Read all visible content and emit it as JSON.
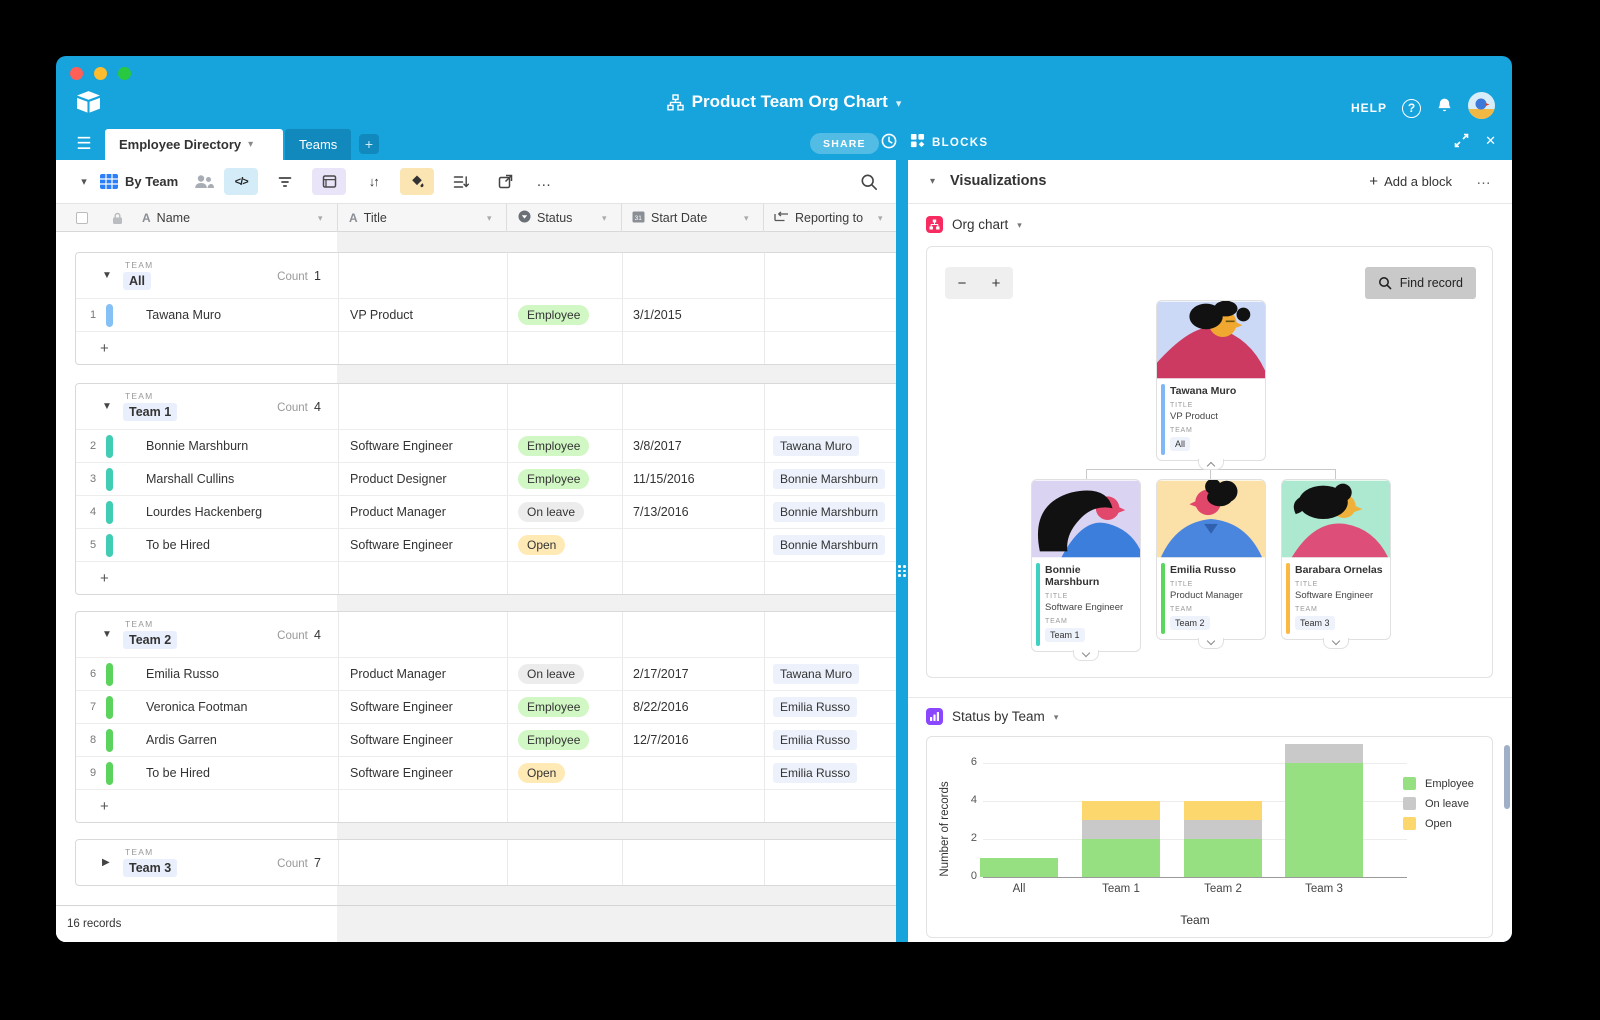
{
  "window": {
    "title": "Product Team Org Chart",
    "help_label": "HELP",
    "share_label": "SHARE",
    "blocks_label": "BLOCKS"
  },
  "tabs": [
    {
      "label": "Employee Directory",
      "active": true
    },
    {
      "label": "Teams",
      "active": false
    }
  ],
  "toolbar": {
    "view_name": "By Team"
  },
  "icons": {
    "caret_down": "▾",
    "tri_down": "▼",
    "tri_right": "▶",
    "plus": "+",
    "minus": "−",
    "ellipsis": "…",
    "close": "✕",
    "hamburger": "☰",
    "code": "</>",
    "sort": "↓↑",
    "help": "?"
  },
  "table": {
    "columns": [
      {
        "label": "Name",
        "icon": "text-field-icon"
      },
      {
        "label": "Title",
        "icon": "text-field-icon"
      },
      {
        "label": "Status",
        "icon": "select-field-icon"
      },
      {
        "label": "Start Date",
        "icon": "date-field-icon"
      },
      {
        "label": "Reporting to",
        "icon": "linked-field-icon"
      }
    ],
    "group_field_label": "TEAM",
    "count_label": "Count",
    "groups": [
      {
        "value": "All",
        "count": 1,
        "collapsed": false,
        "rows": [
          {
            "num": 1,
            "bar_color": "#85C1F5",
            "name": "Tawana Muro",
            "title": "VP Product",
            "status": "Employee",
            "start": "3/1/2015",
            "reports": ""
          }
        ]
      },
      {
        "value": "Team 1",
        "count": 4,
        "collapsed": false,
        "rows": [
          {
            "num": 2,
            "bar_color": "#41CDB4",
            "name": "Bonnie Marshburn",
            "title": "Software Engineer",
            "status": "Employee",
            "start": "3/8/2017",
            "reports": "Tawana Muro"
          },
          {
            "num": 3,
            "bar_color": "#41CDB4",
            "name": "Marshall Cullins",
            "title": "Product Designer",
            "status": "Employee",
            "start": "11/15/2016",
            "reports": "Bonnie Marshburn"
          },
          {
            "num": 4,
            "bar_color": "#41CDB4",
            "name": "Lourdes Hackenberg",
            "title": "Product Manager",
            "status": "On leave",
            "start": "7/13/2016",
            "reports": "Bonnie Marshburn"
          },
          {
            "num": 5,
            "bar_color": "#41CDB4",
            "name": "To be Hired",
            "title": "Software Engineer",
            "status": "Open",
            "start": "",
            "reports": "Bonnie Marshburn"
          }
        ]
      },
      {
        "value": "Team 2",
        "count": 4,
        "collapsed": false,
        "rows": [
          {
            "num": 6,
            "bar_color": "#5BD35C",
            "name": "Emilia Russo",
            "title": "Product Manager",
            "status": "On leave",
            "start": "2/17/2017",
            "reports": "Tawana Muro"
          },
          {
            "num": 7,
            "bar_color": "#5BD35C",
            "name": "Veronica Footman",
            "title": "Software Engineer",
            "status": "Employee",
            "start": "8/22/2016",
            "reports": "Emilia Russo"
          },
          {
            "num": 8,
            "bar_color": "#5BD35C",
            "name": "Ardis Garren",
            "title": "Software Engineer",
            "status": "Employee",
            "start": "12/7/2016",
            "reports": "Emilia Russo"
          },
          {
            "num": 9,
            "bar_color": "#5BD35C",
            "name": "To be Hired",
            "title": "Software Engineer",
            "status": "Open",
            "start": "",
            "reports": "Emilia Russo"
          }
        ]
      },
      {
        "value": "Team 3",
        "count": 7,
        "collapsed": true,
        "rows": []
      }
    ],
    "footer": "16 records"
  },
  "blocks_panel": {
    "header": "Visualizations",
    "add_block": "Add a block",
    "org_chart": {
      "title": "Org chart",
      "find_record": "Find record",
      "title_label": "TITLE",
      "team_label": "TEAM",
      "accent": "#F82B60",
      "root": {
        "name": "Tawana Muro",
        "title": "VP Product",
        "team": "All",
        "bar_color": "#7FB7F7",
        "portrait": "tawana"
      },
      "children": [
        {
          "name": "Bonnie Marshburn",
          "title": "Software Engineer",
          "team": "Team 1",
          "bar_color": "#3ED1C2",
          "portrait": "bonnie"
        },
        {
          "name": "Emilia Russo",
          "title": "Product Manager",
          "team": "Team 2",
          "bar_color": "#5BD75E",
          "portrait": "emilia"
        },
        {
          "name": "Barabara Ornelas",
          "title": "Software Engineer",
          "team": "Team 3",
          "bar_color": "#FBB843",
          "portrait": "barabara"
        }
      ]
    },
    "status_chart": {
      "title": "Status by Team",
      "accent": "#8B46FF"
    }
  },
  "chart_data": {
    "type": "bar",
    "stacked": true,
    "title": "Status by Team",
    "categories": [
      "All",
      "Team 1",
      "Team 2",
      "Team 3"
    ],
    "series": [
      {
        "name": "Employee",
        "color": "#96E082",
        "values": [
          1,
          2,
          2,
          6
        ]
      },
      {
        "name": "On leave",
        "color": "#C9C9C9",
        "values": [
          0,
          1,
          1,
          1
        ]
      },
      {
        "name": "Open",
        "color": "#FBD76E",
        "values": [
          0,
          1,
          1,
          0
        ]
      }
    ],
    "xlabel": "Team",
    "ylabel": "Number of records",
    "ylim": [
      0,
      7
    ],
    "yticks": [
      0,
      2,
      4,
      6
    ],
    "grid": true,
    "legend_position": "right"
  }
}
